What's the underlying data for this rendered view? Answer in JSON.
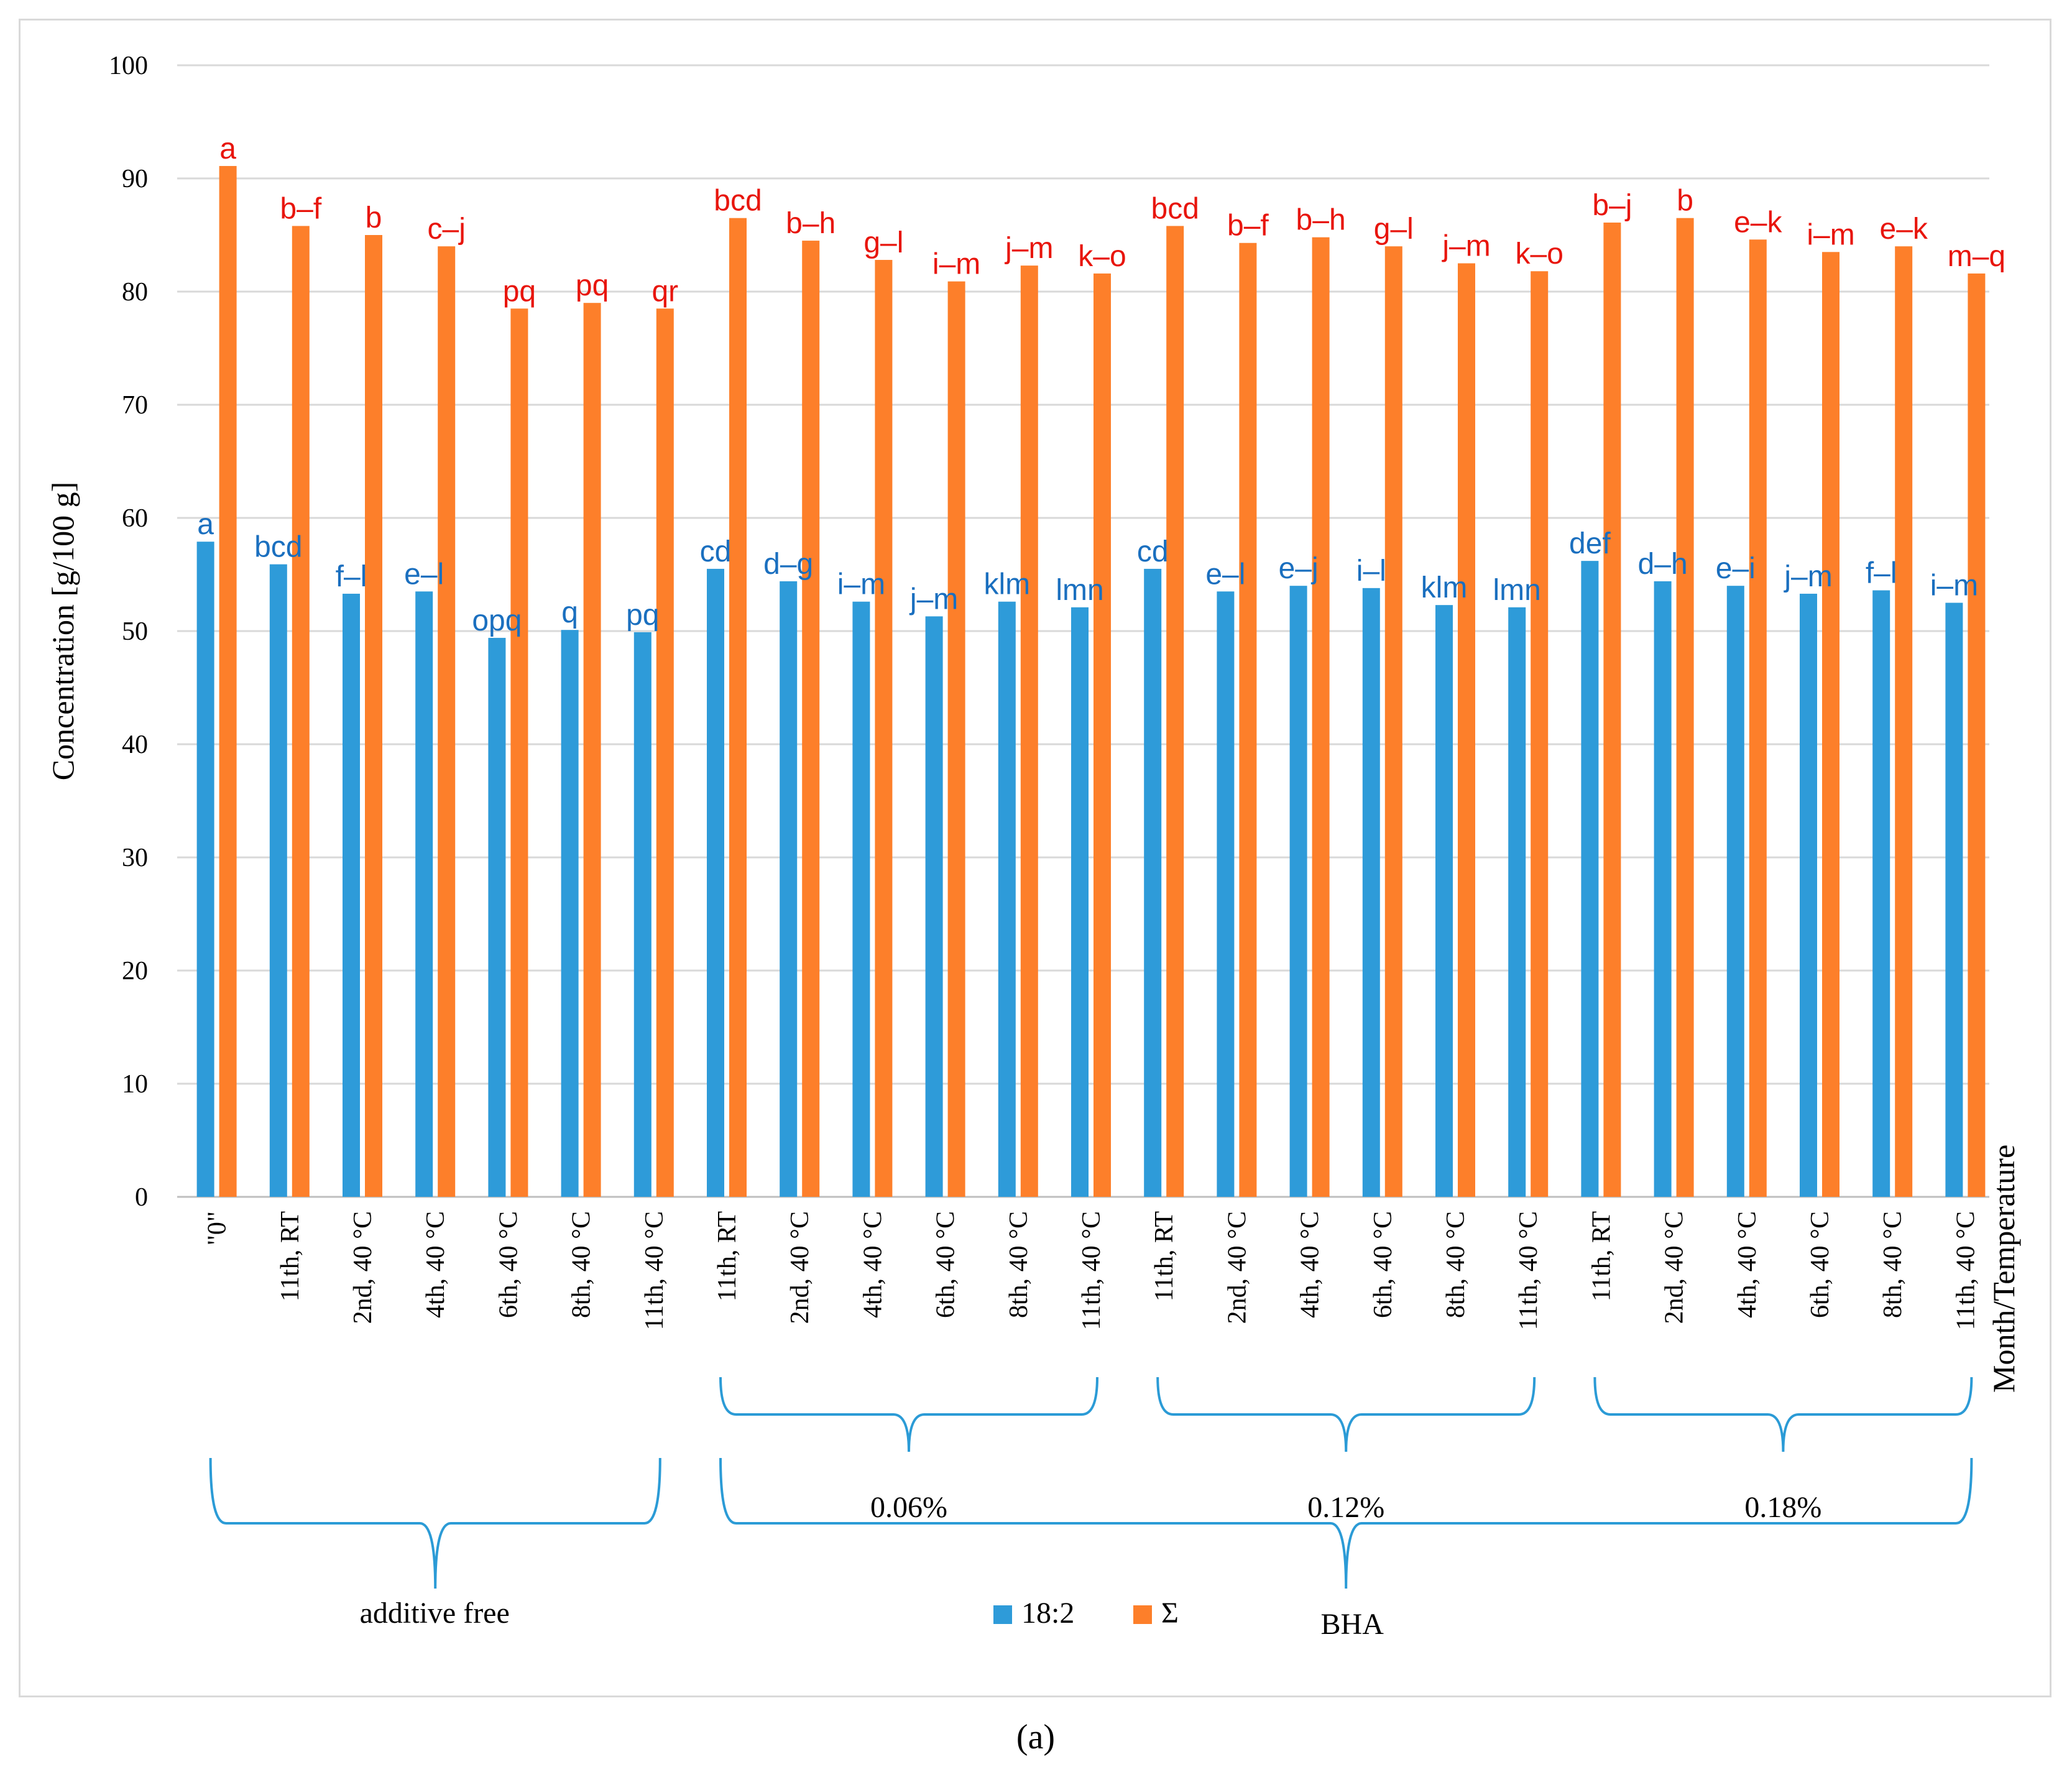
{
  "chart_data": {
    "type": "bar",
    "ylabel": "Concentration [g/100 g]",
    "xlabel": "Month/Temperature",
    "ylim": [
      0,
      100
    ],
    "yticks": [
      0,
      10,
      20,
      30,
      40,
      50,
      60,
      70,
      80,
      90,
      100
    ],
    "grid": true,
    "panel_label": "(a)",
    "categories": [
      "\"0\"",
      "11th, RT",
      "2nd, 40 °C",
      "4th, 40 °C",
      "6th, 40 °C",
      "8th, 40 °C",
      "11th, 40 °C",
      "11th, RT",
      "2nd, 40 °C",
      "4th, 40 °C",
      "6th, 40 °C",
      "8th, 40 °C",
      "11th, 40 °C",
      "11th, RT",
      "2nd, 40 °C",
      "4th, 40 °C",
      "6th, 40 °C",
      "8th, 40 °C",
      "11th, 40 °C",
      "11th, RT",
      "2nd, 40 °C",
      "4th, 40 °C",
      "6th, 40 °C",
      "8th, 40 °C",
      "11th, 40 °C"
    ],
    "series": [
      {
        "name": "18:2",
        "color": "#2e9bd9",
        "label_color": "#1a6fbf",
        "values": [
          57.9,
          55.9,
          53.3,
          53.5,
          49.4,
          50.1,
          49.9,
          55.5,
          54.4,
          52.6,
          51.3,
          52.6,
          52.1,
          55.5,
          53.5,
          54.0,
          53.8,
          52.3,
          52.1,
          56.2,
          54.4,
          54.0,
          53.3,
          53.6,
          52.5
        ],
        "letters": [
          "a",
          "bcd",
          "f–l",
          "e–l",
          "opq",
          "q",
          "pq",
          "cd",
          "d–g",
          "i–m",
          "j–m",
          "klm",
          "lmn",
          "cd",
          "e–l",
          "e–j",
          "i–l",
          "klm",
          "lmn",
          "def",
          "d–h",
          "e–i",
          "j–m",
          "f–l",
          "i–m"
        ]
      },
      {
        "name": "Σ",
        "color": "#fd7f2a",
        "label_color": "#e8150c",
        "values": [
          91.1,
          85.8,
          85.0,
          84.0,
          78.5,
          79.0,
          78.5,
          86.5,
          84.5,
          82.8,
          80.9,
          82.3,
          81.6,
          85.8,
          84.3,
          84.8,
          84.0,
          82.5,
          81.8,
          86.1,
          86.5,
          84.6,
          83.5,
          84.0,
          81.6
        ],
        "letters": [
          "a",
          "b–f",
          "b",
          "c–j",
          "pq",
          "pq",
          "qr",
          "bcd",
          "b–h",
          "g–l",
          "i–m",
          "j–m",
          "k–o",
          "bcd",
          "b–f",
          "b–h",
          "g–l",
          "j–m",
          "k–o",
          "b–j",
          "b",
          "e–k",
          "i–m",
          "e–k",
          "m–q"
        ]
      }
    ],
    "groups": [
      {
        "label": "additive free",
        "from": 0,
        "to": 6
      },
      {
        "label": "0.06%",
        "from": 7,
        "to": 12
      },
      {
        "label": "0.12%",
        "from": 13,
        "to": 18
      },
      {
        "label": "0.18%",
        "from": 19,
        "to": 24
      }
    ],
    "supergroup": {
      "label": "BHA",
      "from": 7,
      "to": 24
    },
    "legend": [
      {
        "name": "18:2",
        "color": "#2e9bd9"
      },
      {
        "name": "Σ",
        "color": "#fd7f2a"
      }
    ],
    "legend_position": "bottom-center",
    "gridline_color": "#d9d9d9",
    "axis_color": "#bfbfbf",
    "brace_color": "#2b9bd6"
  }
}
